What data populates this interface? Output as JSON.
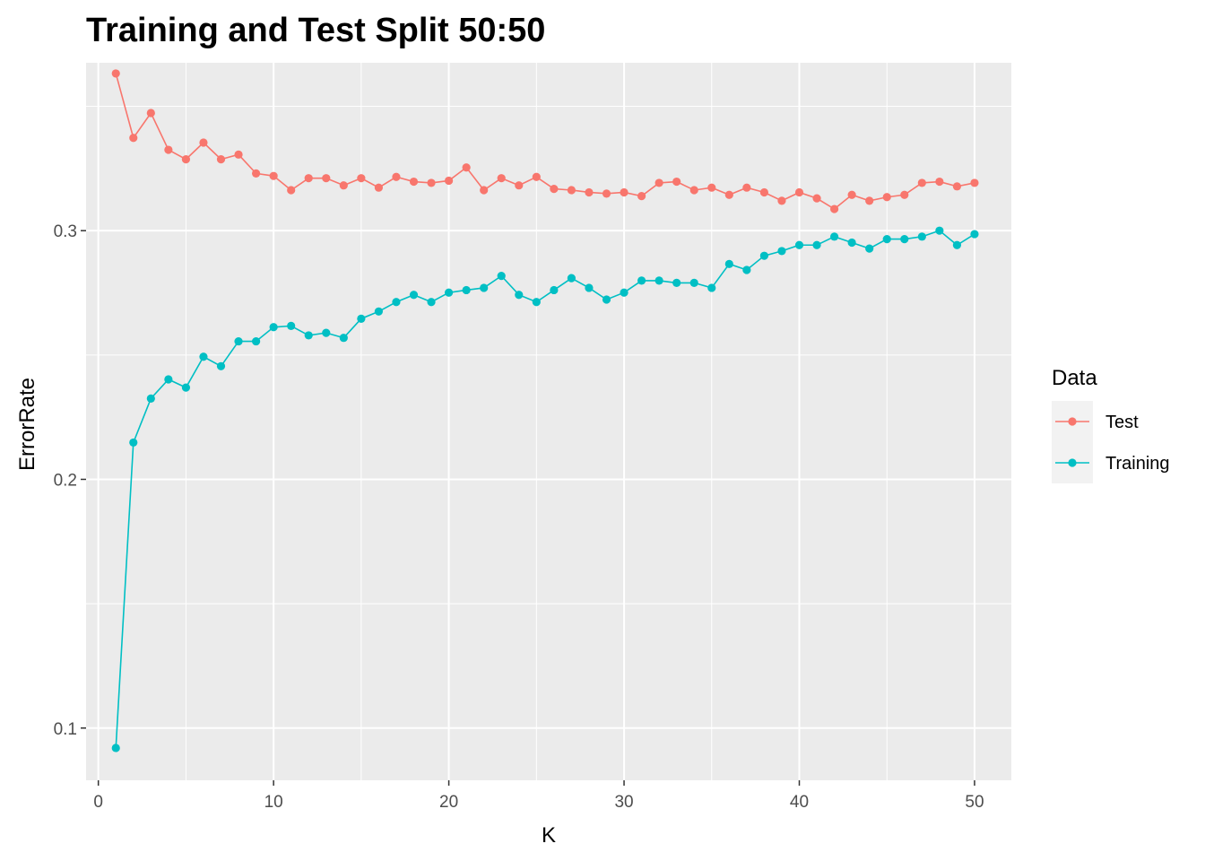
{
  "chart_data": {
    "type": "line",
    "title": "Training and Test Split 50:50",
    "xlabel": "K",
    "ylabel": "ErrorRate",
    "xlim": [
      -0.7,
      52.1
    ],
    "ylim": [
      0.079,
      0.3675
    ],
    "x_ticks": [
      0,
      10,
      20,
      30,
      40,
      50
    ],
    "x_minor_ticks": [
      5,
      15,
      25,
      35,
      45
    ],
    "y_ticks": [
      0.1,
      0.2,
      0.3
    ],
    "y_tick_labels": [
      "0.1",
      "0.2",
      "0.3"
    ],
    "y_minor_ticks": [
      0.15,
      0.25,
      0.35
    ],
    "grid": true,
    "legend": {
      "title": "Data",
      "position": "right"
    },
    "x": [
      1,
      2,
      3,
      4,
      5,
      6,
      7,
      8,
      9,
      10,
      11,
      12,
      13,
      14,
      15,
      16,
      17,
      18,
      19,
      20,
      21,
      22,
      23,
      24,
      25,
      26,
      27,
      28,
      29,
      30,
      31,
      32,
      33,
      34,
      35,
      36,
      37,
      38,
      39,
      40,
      41,
      42,
      43,
      44,
      45,
      46,
      47,
      48,
      49,
      50
    ],
    "series": [
      {
        "name": "Test",
        "color": "#F8766D",
        "values": [
          0.3632,
          0.3373,
          0.3473,
          0.3325,
          0.3287,
          0.3354,
          0.3287,
          0.3306,
          0.323,
          0.322,
          0.3163,
          0.3211,
          0.3211,
          0.3182,
          0.3211,
          0.3173,
          0.3216,
          0.3197,
          0.3192,
          0.3201,
          0.3254,
          0.3163,
          0.3211,
          0.3182,
          0.3216,
          0.3168,
          0.3163,
          0.3154,
          0.3149,
          0.3154,
          0.3139,
          0.3192,
          0.3197,
          0.3163,
          0.3173,
          0.3144,
          0.3173,
          0.3154,
          0.312,
          0.3154,
          0.313,
          0.3087,
          0.3144,
          0.312,
          0.3135,
          0.3144,
          0.3192,
          0.3197,
          0.3178,
          0.3192
        ]
      },
      {
        "name": "Training",
        "color": "#00BFC4",
        "values": [
          0.092,
          0.2148,
          0.2325,
          0.2402,
          0.2369,
          0.2493,
          0.2455,
          0.2555,
          0.2555,
          0.2612,
          0.2617,
          0.2579,
          0.2589,
          0.2569,
          0.2646,
          0.2675,
          0.2713,
          0.2742,
          0.2713,
          0.2751,
          0.2761,
          0.277,
          0.2818,
          0.2742,
          0.2713,
          0.2761,
          0.2809,
          0.277,
          0.2723,
          0.2751,
          0.2799,
          0.2799,
          0.279,
          0.279,
          0.277,
          0.2866,
          0.2842,
          0.2899,
          0.2918,
          0.2942,
          0.2942,
          0.2976,
          0.2952,
          0.2928,
          0.2966,
          0.2966,
          0.2976,
          0.3,
          0.2942,
          0.2986
        ]
      }
    ]
  }
}
